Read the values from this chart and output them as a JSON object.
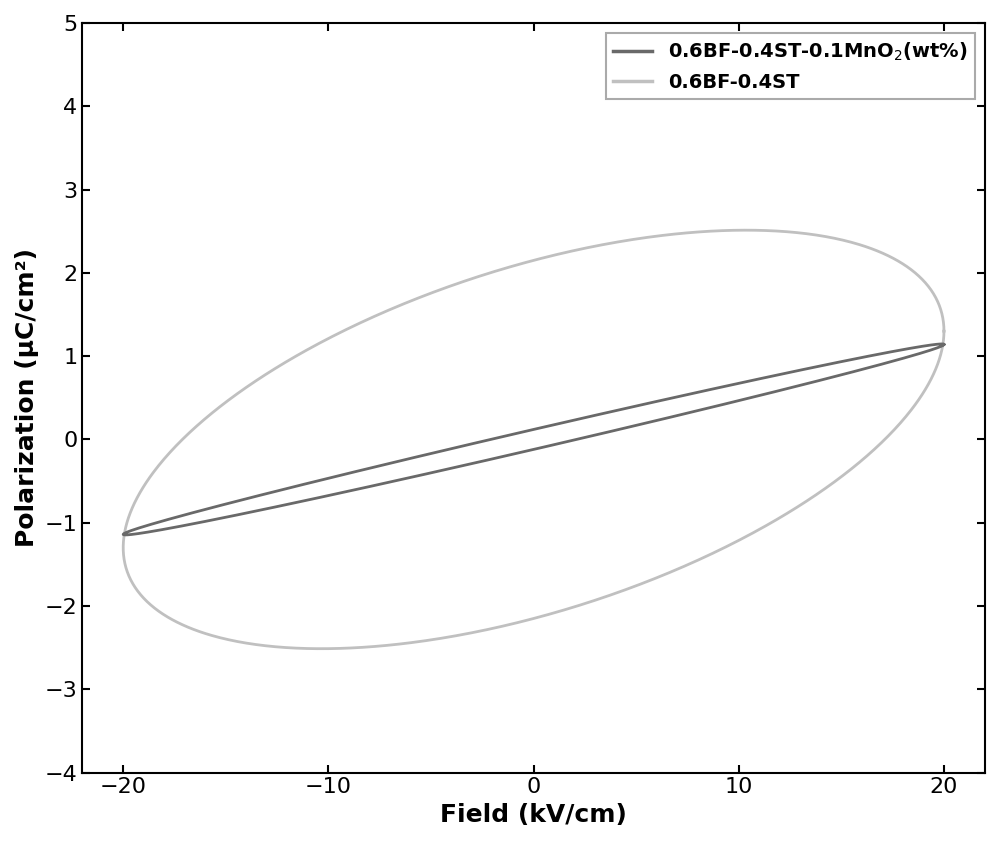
{
  "xlabel": "Field (kV/cm)",
  "ylabel": "Polarization (μC/cm²)",
  "xlim": [
    -22,
    22
  ],
  "ylim": [
    -4,
    5
  ],
  "xticks": [
    -20,
    -10,
    0,
    10,
    20
  ],
  "yticks": [
    -4,
    -3,
    -2,
    -1,
    0,
    1,
    2,
    3,
    4,
    5
  ],
  "legend_label_1": "0.6BF-0.4ST-0.1MnO$_2$(wt%)",
  "legend_label_2": "0.6BF-0.4ST",
  "color_1": "#696969",
  "color_2": "#c0c0c0",
  "linewidth_1": 2.0,
  "linewidth_2": 2.0,
  "background_color": "#ffffff",
  "xlabel_fontsize": 18,
  "ylabel_fontsize": 18,
  "tick_fontsize": 16,
  "legend_fontsize": 14
}
